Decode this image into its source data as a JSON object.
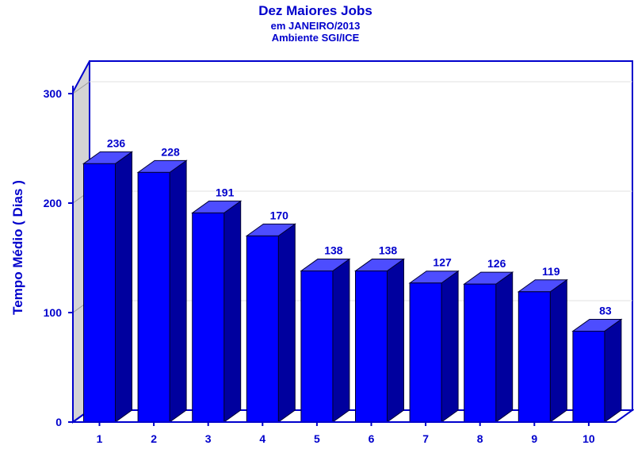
{
  "chart_data": {
    "type": "bar",
    "title": "Dez Maiores Jobs",
    "subtitle": "em JANEIRO/2013",
    "subtitle2": "Ambiente SGI/ICE",
    "xlabel": "",
    "ylabel": "Tempo Médio ( Dias )",
    "categories": [
      "1",
      "2",
      "3",
      "4",
      "5",
      "6",
      "7",
      "8",
      "9",
      "10"
    ],
    "values": [
      236,
      228,
      191,
      170,
      138,
      138,
      127,
      126,
      119,
      83
    ],
    "data_labels": [
      "236",
      "228",
      "191",
      "170",
      "138",
      "138",
      "127",
      "126",
      "119",
      "83"
    ],
    "ylim": [
      0,
      300
    ],
    "yticks": [
      0,
      100,
      200,
      300
    ],
    "ytick_labels": [
      "0",
      "100",
      "200",
      "300"
    ],
    "grid": true,
    "legend": "none",
    "three_d": true,
    "colors": {
      "bar_front": "#0000ff",
      "bar_top": "#4d4dff",
      "bar_side": "#00009e",
      "text": "#0000cc",
      "wall": "#d4d4d4",
      "frame": "#0000cc",
      "grid": "#e0e0e0"
    }
  }
}
